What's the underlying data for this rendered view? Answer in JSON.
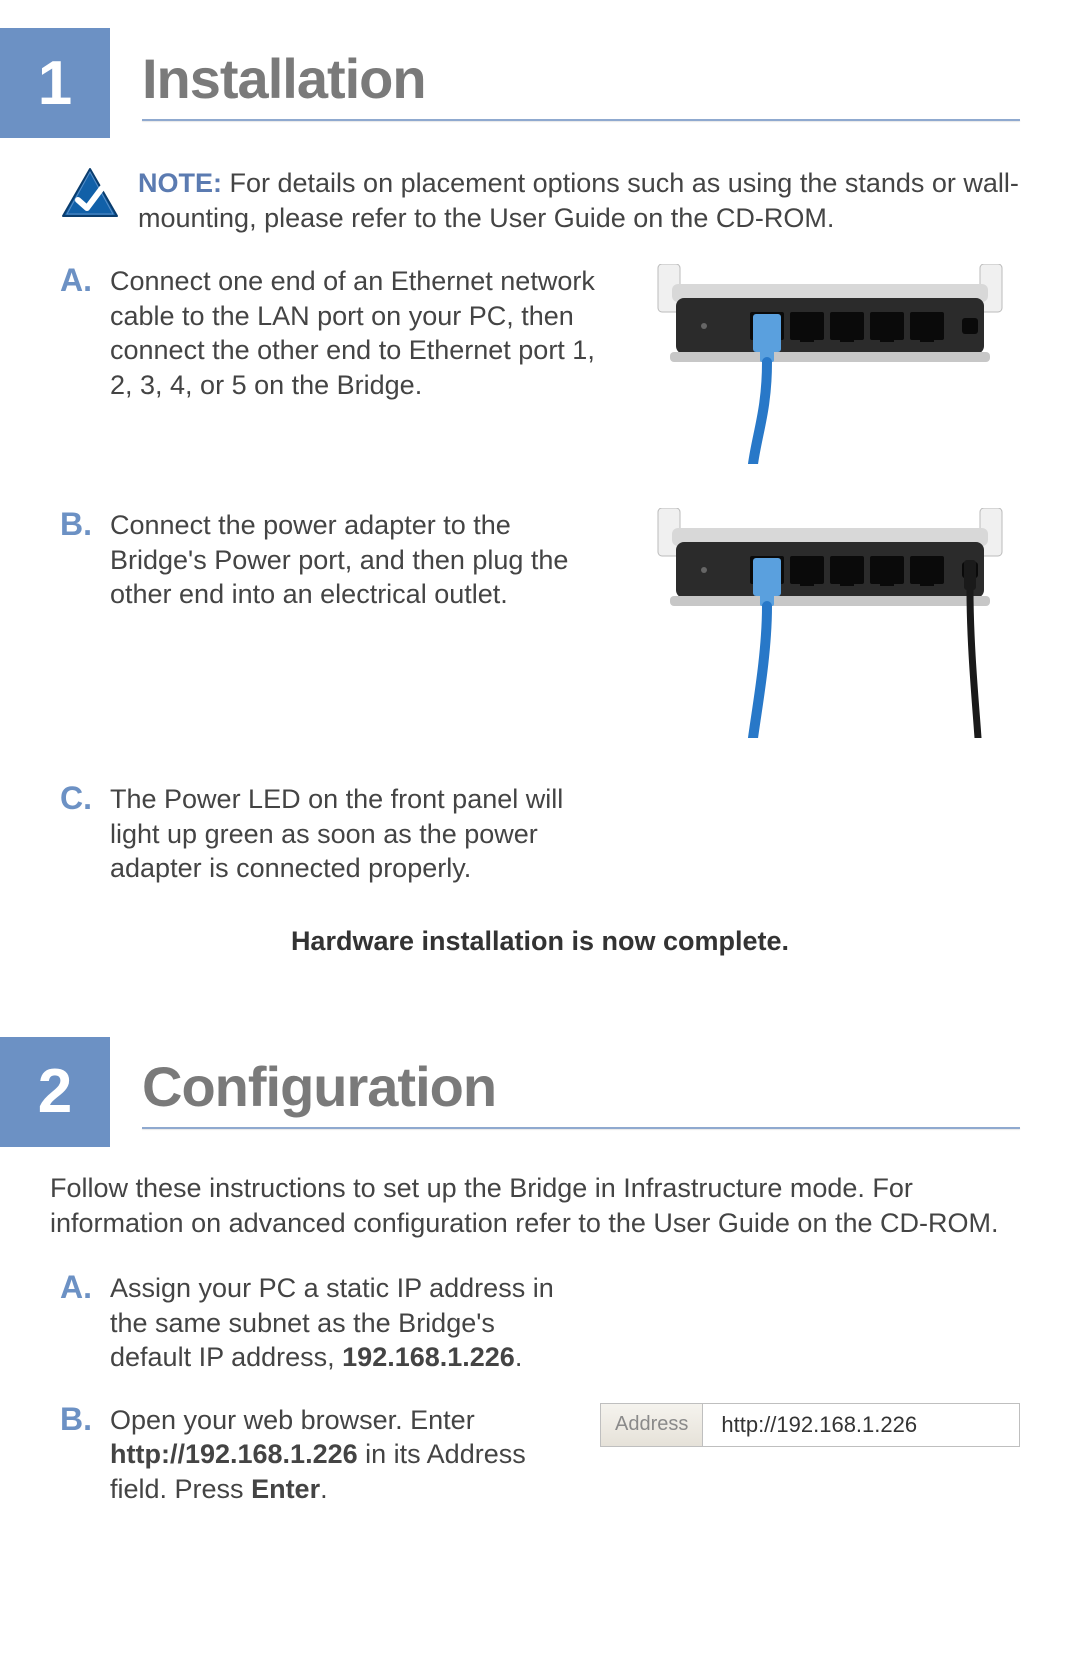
{
  "colors": {
    "accent": "#6c91c4",
    "heading": "#7a7a7a",
    "rule": "#8fa9cf",
    "body_text": "#444444",
    "note_label": "#5b7bb1"
  },
  "section1": {
    "number": "1",
    "title": "Installation",
    "note": {
      "label": "NOTE:",
      "text": " For details on placement options such as using the stands or wall-mounting, please refer to the User Guide on the CD-ROM."
    },
    "steps": {
      "a": {
        "letter": "A.",
        "text": "Connect one end of an Ethernet network cable to the LAN port on your PC, then connect the other end to Ethernet port 1, 2, 3, 4, or 5 on the Bridge."
      },
      "b": {
        "letter": "B.",
        "text": "Connect the power adapter to the Bridge's Power port, and then plug the other end into an electrical outlet."
      },
      "c": {
        "letter": "C.",
        "text": "The Power LED on the front panel will light up green as soon as the power adapter is connected properly."
      }
    },
    "completion": "Hardware installation is now complete."
  },
  "section2": {
    "number": "2",
    "title": "Configuration",
    "intro": "Follow these instructions to set up the Bridge in Infrastructure mode. For information on advanced configuration refer to the User Guide on the CD-ROM.",
    "steps": {
      "a": {
        "letter": "A.",
        "pre": "Assign your PC a static IP address in the same subnet as the Bridge's default IP address, ",
        "bold": "192.168.1.226",
        "post": "."
      },
      "b": {
        "letter": "B.",
        "pre": "Open your web browser. Enter ",
        "bold1": "http://192.168.1.226",
        "mid": " in its Address field. Press ",
        "bold2": "Enter",
        "post": "."
      }
    },
    "address_bar": {
      "label": "Address",
      "value": "http://192.168.1.226"
    }
  },
  "router_illustration_a": {
    "body_color": "#2b2b2b",
    "body_top_color": "#d8d8d8",
    "antenna_color": "#f0f0f0",
    "port_color": "#0a0a0a",
    "cable_color": "#2878c8",
    "jack_color": "#5aa0de",
    "cable_port_index": 0,
    "power_cable": false
  },
  "router_illustration_b": {
    "body_color": "#2b2b2b",
    "body_top_color": "#d8d8d8",
    "antenna_color": "#f0f0f0",
    "port_color": "#0a0a0a",
    "cable_color": "#2878c8",
    "jack_color": "#5aa0de",
    "cable_port_index": 0,
    "power_cable": true,
    "power_cable_color": "#1a1a1a"
  },
  "check_icon": {
    "fill": "#1160a8",
    "stroke": "#0a3d6e",
    "tick": "#ffffff"
  }
}
